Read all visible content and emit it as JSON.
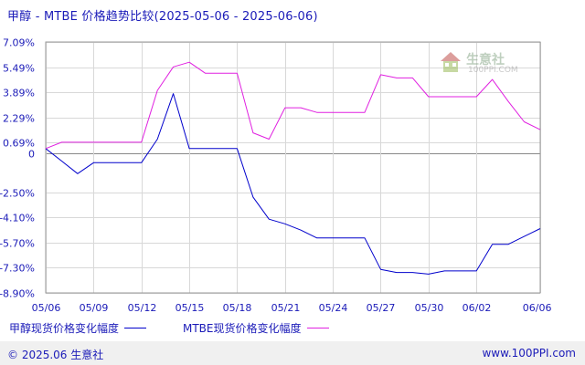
{
  "title": "甲醇 - MTBE 价格趋势比较(2025-05-06 - 2025-06-06)",
  "watermark": {
    "text": "生意社",
    "url": "100PPI.COM"
  },
  "legend": {
    "series1": "甲醇现货价格变化幅度",
    "series2": "MTBE现货价格变化幅度"
  },
  "footer": {
    "copyright": "© 2025.06 生意社",
    "site": "www.100PPI.com"
  },
  "colors": {
    "series1": "#0000cc",
    "series2": "#e020e0",
    "title_text": "#1b1bb8",
    "grid": "#d8d8d8"
  },
  "chart_data": {
    "type": "line",
    "title": "甲醇 - MTBE 价格趋势比较(2025-05-06 - 2025-06-06)",
    "x": [
      "05/06",
      "05/07",
      "05/08",
      "05/09",
      "05/10",
      "05/11",
      "05/12",
      "05/13",
      "05/14",
      "05/15",
      "05/16",
      "05/17",
      "05/18",
      "05/19",
      "05/20",
      "05/21",
      "05/22",
      "05/23",
      "05/24",
      "05/25",
      "05/26",
      "05/27",
      "05/28",
      "05/29",
      "05/30",
      "05/31",
      "06/01",
      "06/02",
      "06/03",
      "06/04",
      "06/05",
      "06/06"
    ],
    "x_tick_labels": [
      "05/06",
      "05/09",
      "05/12",
      "05/15",
      "05/18",
      "05/21",
      "05/24",
      "05/27",
      "05/30",
      "06/02",
      "06/06"
    ],
    "y_tick_labels": [
      "7.09%",
      "5.49%",
      "3.89%",
      "2.29%",
      "0.69%",
      "0",
      "-2.50%",
      "-4.10%",
      "-5.70%",
      "-7.30%",
      "-8.90%"
    ],
    "ylim": [
      -8.9,
      7.09
    ],
    "grid": true,
    "legend_position": "bottom-left",
    "series": [
      {
        "name": "甲醇现货价格变化幅度",
        "values": [
          0.3,
          -0.5,
          -1.3,
          -0.6,
          -0.6,
          -0.6,
          -0.6,
          0.9,
          3.8,
          0.3,
          0.3,
          0.3,
          0.3,
          -2.8,
          -4.2,
          -4.5,
          -4.9,
          -5.4,
          -5.4,
          -5.4,
          -5.4,
          -7.4,
          -7.6,
          -7.6,
          -7.7,
          -7.5,
          -7.5,
          -7.5,
          -5.8,
          -5.8,
          -5.3,
          -4.8
        ]
      },
      {
        "name": "MTBE现货价格变化幅度",
        "values": [
          0.3,
          0.7,
          0.7,
          0.7,
          0.7,
          0.7,
          0.7,
          4.0,
          5.5,
          5.8,
          5.1,
          5.1,
          5.1,
          1.3,
          0.9,
          2.9,
          2.9,
          2.6,
          2.6,
          2.6,
          2.6,
          5.0,
          4.8,
          4.8,
          3.6,
          3.6,
          3.6,
          3.6,
          4.7,
          3.3,
          2.0,
          1.5
        ]
      }
    ]
  }
}
